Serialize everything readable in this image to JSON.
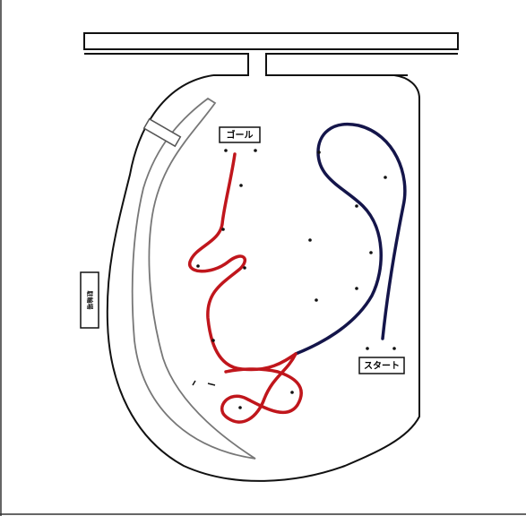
{
  "map": {
    "labels": {
      "goal": "ゴール",
      "start": "スタート",
      "side": "駐輪場"
    },
    "colors": {
      "background": "#ffffff",
      "outline": "#111111",
      "goal_route": "#c0161c",
      "start_route": "#14154a",
      "inner_track": "#777777"
    },
    "route_markers": {
      "goal_route_dots": 9,
      "start_route_dots": 8
    }
  }
}
